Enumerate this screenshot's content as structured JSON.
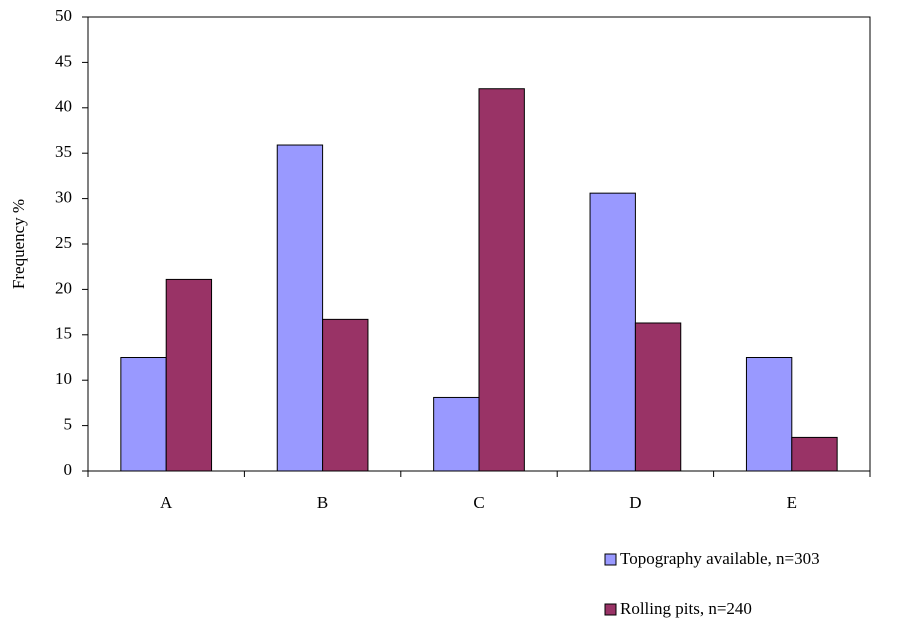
{
  "chart_data": {
    "type": "bar",
    "y_label": "Frequency %",
    "categories": [
      "A",
      "B",
      "C",
      "D",
      "E"
    ],
    "series": [
      {
        "name": "Topography available, n=303",
        "color": "#9999ff",
        "values": [
          12.5,
          35.9,
          8.1,
          30.6,
          12.5
        ]
      },
      {
        "name": "Rolling pits, n=240",
        "color": "#993366",
        "values": [
          21.1,
          16.7,
          42.1,
          16.3,
          3.7
        ]
      }
    ],
    "ylim": [
      0,
      50
    ],
    "yticks": [
      0,
      5,
      10,
      15,
      20,
      25,
      30,
      35,
      40,
      45,
      50
    ],
    "grid": false,
    "legend": "bottom-right"
  }
}
